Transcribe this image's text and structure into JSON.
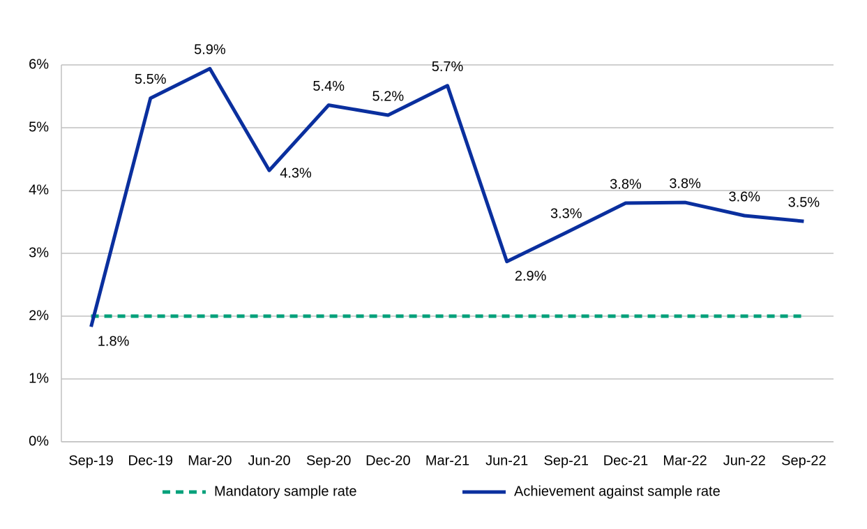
{
  "chart_data": {
    "type": "line",
    "categories": [
      "Sep-19",
      "Dec-19",
      "Mar-20",
      "Jun-20",
      "Sep-20",
      "Dec-20",
      "Mar-21",
      "Jun-21",
      "Sep-21",
      "Dec-21",
      "Mar-22",
      "Jun-22",
      "Sep-22"
    ],
    "series": [
      {
        "name": "Mandatory sample rate",
        "color": "#00a07a",
        "dashed": true,
        "values": [
          2,
          2,
          2,
          2,
          2,
          2,
          2,
          2,
          2,
          2,
          2,
          2,
          2
        ]
      },
      {
        "name": "Achievement against sample rate",
        "color": "#0a2f9e",
        "dashed": false,
        "values": [
          1.83,
          5.47,
          5.94,
          4.32,
          5.36,
          5.2,
          5.67,
          2.87,
          3.33,
          3.8,
          3.81,
          3.6,
          3.51
        ],
        "value_labels": [
          "1.8%",
          "5.5%",
          "5.9%",
          "4.3%",
          "5.4%",
          "5.2%",
          "5.7%",
          "2.9%",
          "3.3%",
          "3.8%",
          "3.8%",
          "3.6%",
          "3.5%"
        ]
      }
    ],
    "ylim": [
      0,
      6
    ],
    "yticks": [
      {
        "value": 0,
        "label": "0%"
      },
      {
        "value": 1,
        "label": "1%"
      },
      {
        "value": 2,
        "label": "2%"
      },
      {
        "value": 3,
        "label": "3%"
      },
      {
        "value": 4,
        "label": "4%"
      },
      {
        "value": 5,
        "label": "5%"
      },
      {
        "value": 6,
        "label": "6%"
      }
    ],
    "grid": true,
    "legend": "bottom"
  }
}
